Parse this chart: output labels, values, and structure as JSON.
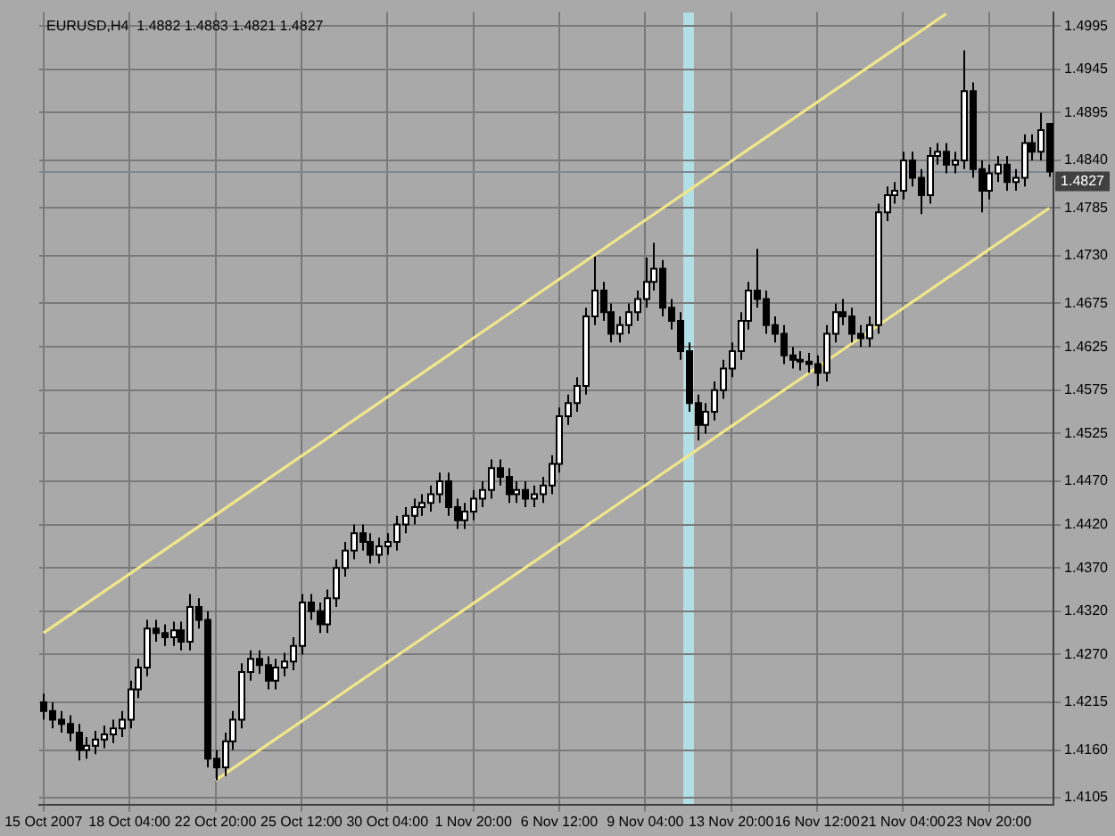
{
  "chart_data": {
    "type": "candlestick",
    "title": "EURUSD,H4  1.4882 1.4883 1.4821 1.4827",
    "categories": [
      "15 Oct 2007",
      null,
      null,
      null,
      null,
      null,
      null,
      null,
      null,
      null,
      "18 Oct 04:00",
      null,
      null,
      null,
      null,
      null,
      null,
      null,
      null,
      null,
      "22 Oct 20:00",
      null,
      null,
      null,
      null,
      null,
      null,
      null,
      null,
      null,
      "25 Oct 12:00",
      null,
      null,
      null,
      null,
      null,
      null,
      null,
      null,
      null,
      "30 Oct 04:00",
      null,
      null,
      null,
      null,
      null,
      null,
      null,
      null,
      null,
      "1 Nov 20:00",
      null,
      null,
      null,
      null,
      null,
      null,
      null,
      null,
      null,
      "6 Nov 12:00",
      null,
      null,
      null,
      null,
      null,
      null,
      null,
      null,
      null,
      "9 Nov 04:00",
      null,
      null,
      null,
      null,
      null,
      null,
      null,
      null,
      null,
      "13 Nov 20:00",
      null,
      null,
      null,
      null,
      null,
      null,
      null,
      null,
      null,
      "16 Nov 12:00",
      null,
      null,
      null,
      null,
      null,
      null,
      null,
      null,
      null,
      "21 Nov 04:00",
      null,
      null,
      null,
      null,
      null,
      null,
      null,
      null,
      null,
      "23 Nov 20:00",
      null,
      null,
      null,
      null,
      null,
      null,
      null
    ],
    "ohlc": [
      [
        1.4215,
        1.4225,
        1.4195,
        1.4205
      ],
      [
        1.4205,
        1.4215,
        1.4185,
        1.4195
      ],
      [
        1.4195,
        1.4205,
        1.418,
        1.419
      ],
      [
        1.419,
        1.42,
        1.417,
        1.418
      ],
      [
        1.418,
        1.419,
        1.4148,
        1.416
      ],
      [
        1.416,
        1.4175,
        1.415,
        1.4165
      ],
      [
        1.4165,
        1.4182,
        1.4155,
        1.4172
      ],
      [
        1.4172,
        1.4188,
        1.4162,
        1.4178
      ],
      [
        1.4178,
        1.4195,
        1.4168,
        1.4185
      ],
      [
        1.4185,
        1.4205,
        1.4175,
        1.4195
      ],
      [
        1.4195,
        1.424,
        1.4185,
        1.423
      ],
      [
        1.423,
        1.4265,
        1.422,
        1.4255
      ],
      [
        1.4255,
        1.431,
        1.4245,
        1.43
      ],
      [
        1.43,
        1.431,
        1.4285,
        1.4295
      ],
      [
        1.4295,
        1.4305,
        1.428,
        1.429
      ],
      [
        1.429,
        1.4308,
        1.428,
        1.4298
      ],
      [
        1.4298,
        1.4308,
        1.4275,
        1.4285
      ],
      [
        1.4285,
        1.434,
        1.4275,
        1.4325
      ],
      [
        1.4325,
        1.4335,
        1.43,
        1.431
      ],
      [
        1.431,
        1.432,
        1.414,
        1.415
      ],
      [
        1.415,
        1.416,
        1.4125,
        1.414
      ],
      [
        1.414,
        1.418,
        1.413,
        1.417
      ],
      [
        1.417,
        1.4205,
        1.416,
        1.4195
      ],
      [
        1.4195,
        1.426,
        1.4185,
        1.425
      ],
      [
        1.425,
        1.4275,
        1.424,
        1.4265
      ],
      [
        1.4265,
        1.4275,
        1.4248,
        1.4258
      ],
      [
        1.4258,
        1.4268,
        1.423,
        1.424
      ],
      [
        1.424,
        1.4265,
        1.423,
        1.4255
      ],
      [
        1.4255,
        1.4272,
        1.4245,
        1.4262
      ],
      [
        1.4262,
        1.429,
        1.4252,
        1.428
      ],
      [
        1.428,
        1.434,
        1.427,
        1.433
      ],
      [
        1.433,
        1.434,
        1.431,
        1.432
      ],
      [
        1.432,
        1.433,
        1.4295,
        1.4305
      ],
      [
        1.4305,
        1.4345,
        1.4295,
        1.4335
      ],
      [
        1.4335,
        1.438,
        1.4325,
        1.437
      ],
      [
        1.437,
        1.44,
        1.436,
        1.439
      ],
      [
        1.439,
        1.442,
        1.438,
        1.441
      ],
      [
        1.441,
        1.442,
        1.439,
        1.44
      ],
      [
        1.44,
        1.441,
        1.4375,
        1.4385
      ],
      [
        1.4385,
        1.4405,
        1.4375,
        1.4395
      ],
      [
        1.4395,
        1.441,
        1.4385,
        1.44
      ],
      [
        1.44,
        1.443,
        1.439,
        1.442
      ],
      [
        1.442,
        1.444,
        1.441,
        1.443
      ],
      [
        1.443,
        1.445,
        1.442,
        1.444
      ],
      [
        1.444,
        1.4455,
        1.443,
        1.4445
      ],
      [
        1.4445,
        1.4465,
        1.4435,
        1.4455
      ],
      [
        1.4455,
        1.448,
        1.4445,
        1.447
      ],
      [
        1.447,
        1.448,
        1.443,
        1.444
      ],
      [
        1.444,
        1.445,
        1.4415,
        1.4425
      ],
      [
        1.4425,
        1.4445,
        1.4415,
        1.4435
      ],
      [
        1.4435,
        1.446,
        1.4425,
        1.445
      ],
      [
        1.445,
        1.447,
        1.444,
        1.446
      ],
      [
        1.446,
        1.4495,
        1.445,
        1.4485
      ],
      [
        1.4485,
        1.4495,
        1.4465,
        1.4475
      ],
      [
        1.4475,
        1.4485,
        1.4445,
        1.4455
      ],
      [
        1.4455,
        1.447,
        1.4445,
        1.446
      ],
      [
        1.446,
        1.447,
        1.444,
        1.445
      ],
      [
        1.445,
        1.4465,
        1.444,
        1.4455
      ],
      [
        1.4455,
        1.4475,
        1.4445,
        1.4465
      ],
      [
        1.4465,
        1.45,
        1.4455,
        1.449
      ],
      [
        1.449,
        1.4555,
        1.448,
        1.4545
      ],
      [
        1.4545,
        1.457,
        1.4535,
        1.456
      ],
      [
        1.456,
        1.459,
        1.455,
        1.458
      ],
      [
        1.458,
        1.467,
        1.457,
        1.466
      ],
      [
        1.466,
        1.4729,
        1.465,
        1.469
      ],
      [
        1.469,
        1.47,
        1.4655,
        1.4665
      ],
      [
        1.4665,
        1.4675,
        1.463,
        1.464
      ],
      [
        1.464,
        1.466,
        1.463,
        1.465
      ],
      [
        1.465,
        1.4675,
        1.464,
        1.4665
      ],
      [
        1.4665,
        1.469,
        1.4655,
        1.468
      ],
      [
        1.468,
        1.4728,
        1.467,
        1.47
      ],
      [
        1.47,
        1.4745,
        1.469,
        1.4715
      ],
      [
        1.4715,
        1.4725,
        1.466,
        1.467
      ],
      [
        1.467,
        1.468,
        1.4645,
        1.4655
      ],
      [
        1.4655,
        1.4665,
        1.461,
        1.462
      ],
      [
        1.462,
        1.463,
        1.455,
        1.456
      ],
      [
        1.456,
        1.457,
        1.4517,
        1.4535
      ],
      [
        1.4535,
        1.456,
        1.4525,
        1.455
      ],
      [
        1.455,
        1.4585,
        1.454,
        1.4575
      ],
      [
        1.4575,
        1.461,
        1.4565,
        1.46
      ],
      [
        1.46,
        1.463,
        1.459,
        1.462
      ],
      [
        1.462,
        1.4665,
        1.461,
        1.4655
      ],
      [
        1.4655,
        1.47,
        1.4645,
        1.469
      ],
      [
        1.469,
        1.4738,
        1.467,
        1.468
      ],
      [
        1.468,
        1.469,
        1.464,
        1.465
      ],
      [
        1.465,
        1.466,
        1.463,
        1.464
      ],
      [
        1.464,
        1.465,
        1.4605,
        1.4615
      ],
      [
        1.4615,
        1.4625,
        1.46,
        1.461
      ],
      [
        1.461,
        1.462,
        1.4598,
        1.4608
      ],
      [
        1.4608,
        1.4618,
        1.4595,
        1.4605
      ],
      [
        1.4605,
        1.4615,
        1.458,
        1.4595
      ],
      [
        1.4595,
        1.465,
        1.4585,
        1.464
      ],
      [
        1.464,
        1.4675,
        1.463,
        1.4665
      ],
      [
        1.4665,
        1.468,
        1.465,
        1.466
      ],
      [
        1.466,
        1.467,
        1.463,
        1.464
      ],
      [
        1.464,
        1.465,
        1.4625,
        1.4635
      ],
      [
        1.4635,
        1.466,
        1.4625,
        1.465
      ],
      [
        1.465,
        1.479,
        1.464,
        1.478
      ],
      [
        1.478,
        1.481,
        1.477,
        1.48
      ],
      [
        1.48,
        1.4815,
        1.479,
        1.4805
      ],
      [
        1.4805,
        1.485,
        1.4795,
        1.484
      ],
      [
        1.484,
        1.485,
        1.481,
        1.482
      ],
      [
        1.482,
        1.483,
        1.4778,
        1.48
      ],
      [
        1.48,
        1.4855,
        1.479,
        1.4845
      ],
      [
        1.4845,
        1.486,
        1.4835,
        1.485
      ],
      [
        1.485,
        1.486,
        1.4825,
        1.4835
      ],
      [
        1.4835,
        1.485,
        1.4825,
        1.484
      ],
      [
        1.484,
        1.4967,
        1.483,
        1.492
      ],
      [
        1.492,
        1.493,
        1.482,
        1.483
      ],
      [
        1.483,
        1.484,
        1.478,
        1.4805
      ],
      [
        1.4805,
        1.4835,
        1.4795,
        1.4825
      ],
      [
        1.4825,
        1.4845,
        1.4815,
        1.4835
      ],
      [
        1.4835,
        1.4845,
        1.4805,
        1.4815
      ],
      [
        1.4815,
        1.483,
        1.4805,
        1.482
      ],
      [
        1.482,
        1.487,
        1.481,
        1.486
      ],
      [
        1.486,
        1.487,
        1.484,
        1.485
      ],
      [
        1.485,
        1.4895,
        1.484,
        1.4875
      ],
      [
        1.4882,
        1.4883,
        1.4821,
        1.4827
      ]
    ],
    "series": [
      {
        "type": "line",
        "color": "#f0e68c",
        "values": [
          1.4295,
          null,
          null,
          null,
          null,
          null,
          null,
          null,
          null,
          null,
          null,
          null,
          null,
          null,
          null,
          null,
          null,
          null,
          null,
          null,
          null,
          null,
          null,
          null,
          null,
          null,
          null,
          null,
          null,
          null,
          null,
          null,
          null,
          null,
          null,
          null,
          null,
          null,
          null,
          null,
          null,
          null,
          null,
          null,
          null,
          null,
          null,
          null,
          null,
          null,
          null,
          null,
          null,
          null,
          null,
          null,
          null,
          null,
          null,
          null,
          null,
          null,
          null,
          null,
          null,
          null,
          null,
          null,
          null,
          null,
          null,
          null,
          null,
          null,
          null,
          null,
          null,
          null,
          null,
          null,
          null,
          null,
          null,
          null,
          null,
          null,
          null,
          null,
          null,
          null,
          null,
          null,
          null,
          null,
          null,
          null,
          null,
          null,
          null,
          null,
          null,
          null,
          null,
          null,
          null,
          1.5009,
          null,
          null,
          null,
          null,
          null,
          null,
          null,
          null,
          null,
          null,
          null,
          null
        ]
      },
      {
        "type": "line",
        "color": "#f0e68c",
        "values": [
          null,
          null,
          null,
          null,
          null,
          null,
          null,
          null,
          null,
          null,
          null,
          null,
          null,
          null,
          null,
          null,
          null,
          null,
          null,
          null,
          1.4125,
          null,
          null,
          null,
          null,
          null,
          null,
          null,
          null,
          null,
          null,
          null,
          null,
          null,
          null,
          null,
          null,
          null,
          null,
          null,
          null,
          null,
          null,
          null,
          null,
          null,
          null,
          null,
          null,
          null,
          null,
          null,
          null,
          null,
          null,
          null,
          null,
          null,
          null,
          null,
          null,
          null,
          null,
          null,
          null,
          null,
          null,
          null,
          null,
          null,
          null,
          null,
          null,
          null,
          null,
          null,
          null,
          null,
          null,
          null,
          null,
          null,
          null,
          null,
          null,
          null,
          null,
          null,
          null,
          null,
          null,
          null,
          null,
          null,
          null,
          null,
          null,
          null,
          null,
          null,
          null,
          null,
          null,
          null,
          null,
          null,
          null,
          null,
          null,
          null,
          null,
          null,
          null,
          null,
          null,
          null,
          null,
          1.4785
        ]
      }
    ],
    "ylim": [
      1.4097,
      1.5011
    ],
    "yticks": [
      1.4995,
      1.4945,
      1.4895,
      {
        "value": 1.484,
        "label": "1.4840"
      },
      1.4785,
      {
        "value": 1.473,
        "label": "1.4730"
      },
      1.4675,
      1.4625,
      1.4575,
      1.4525,
      {
        "value": 1.447,
        "label": "1.4470"
      },
      {
        "value": 1.442,
        "label": "1.4420"
      },
      {
        "value": 1.437,
        "label": "1.4370"
      },
      {
        "value": 1.432,
        "label": "1.4320"
      },
      {
        "value": 1.427,
        "label": "1.4270"
      },
      1.4215,
      {
        "value": 1.416,
        "label": "1.4160"
      },
      1.4105
    ],
    "ref_lines": [
      {
        "axis": "y",
        "value": 1.4827,
        "label": "1.4827",
        "color": "#7d8896"
      }
    ],
    "grid": true,
    "legend": false
  }
}
